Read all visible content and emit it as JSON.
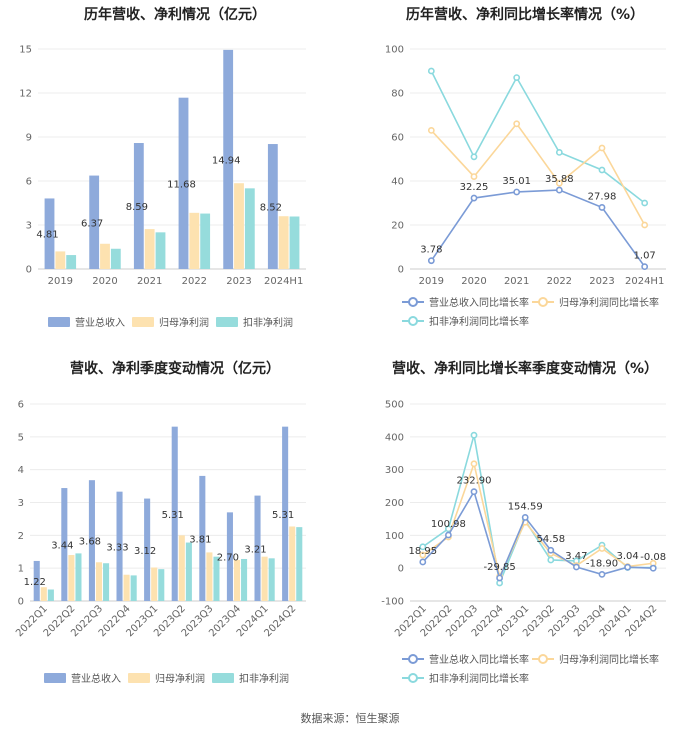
{
  "source": "数据来源：恒生聚源",
  "colors": {
    "revenue": "#8eaadb",
    "parent": "#fde2b0",
    "deducted": "#96dcdc",
    "line_revenue": "#7b9bd6",
    "line_parent": "#fbd79a",
    "line_deducted": "#8ad9de",
    "grid": "#ececec",
    "axis": "#cccccc"
  },
  "chart_data": [
    {
      "id": "annual-bar",
      "type": "bar",
      "title": "历年营收、净利情况（亿元）",
      "categories": [
        "2019",
        "2020",
        "2021",
        "2022",
        "2023",
        "2024H1"
      ],
      "series": [
        {
          "name": "营业总收入",
          "values": [
            4.81,
            6.37,
            8.59,
            11.68,
            14.94,
            8.52
          ]
        },
        {
          "name": "归母净利润",
          "values": [
            1.2,
            1.72,
            2.72,
            3.83,
            5.85,
            3.6
          ]
        },
        {
          "name": "扣非净利润",
          "values": [
            0.95,
            1.38,
            2.5,
            3.78,
            5.5,
            3.58
          ]
        }
      ],
      "labels": [
        "4.81",
        "6.37",
        "8.59",
        "11.68",
        "14.94",
        "8.52"
      ],
      "yticks": [
        "0",
        "3",
        "6",
        "9",
        "12",
        "15"
      ],
      "ylim": [
        0,
        15
      ]
    },
    {
      "id": "annual-line",
      "type": "line",
      "title": "历年营收、净利同比增长率情况（%）",
      "categories": [
        "2019",
        "2020",
        "2021",
        "2022",
        "2023",
        "2024H1"
      ],
      "series": [
        {
          "name": "营业总收入同比增长率",
          "values": [
            3.78,
            32.25,
            35.01,
            35.88,
            27.98,
            1.07
          ]
        },
        {
          "name": "归母净利润同比增长率",
          "values": [
            63,
            42,
            66,
            39,
            55,
            20
          ]
        },
        {
          "name": "扣非净利润同比增长率",
          "values": [
            90,
            51,
            87,
            53,
            45,
            30
          ]
        }
      ],
      "labels": [
        "3.78",
        "32.25",
        "35.01",
        "35.88",
        "27.98",
        "1.07"
      ],
      "yticks": [
        "0",
        "20",
        "40",
        "60",
        "80",
        "100"
      ],
      "ylim": [
        0,
        100
      ]
    },
    {
      "id": "quarter-bar",
      "type": "bar",
      "title": "营收、净利季度变动情况（亿元）",
      "categories": [
        "2022Q1",
        "2022Q2",
        "2022Q3",
        "2022Q4",
        "2023Q1",
        "2023Q2",
        "2023Q3",
        "2023Q4",
        "2024Q1",
        "2024Q2"
      ],
      "series": [
        {
          "name": "营业总收入",
          "values": [
            1.22,
            3.44,
            3.68,
            3.33,
            3.12,
            5.31,
            3.81,
            2.7,
            3.21,
            5.31
          ]
        },
        {
          "name": "归母净利润",
          "values": [
            0.42,
            1.4,
            1.18,
            0.8,
            1.02,
            2.0,
            1.48,
            1.25,
            1.35,
            2.27
          ]
        },
        {
          "name": "扣非净利润",
          "values": [
            0.35,
            1.45,
            1.15,
            0.78,
            0.97,
            1.78,
            1.35,
            1.28,
            1.3,
            2.25
          ]
        }
      ],
      "labels": [
        "1.22",
        "3.44",
        "3.68",
        "3.33",
        "3.12",
        "5.31",
        "3.81",
        "2.70",
        "3.21",
        "5.31"
      ],
      "yticks": [
        "0",
        "1",
        "2",
        "3",
        "4",
        "5",
        "6"
      ],
      "ylim": [
        0,
        6
      ]
    },
    {
      "id": "quarter-line",
      "type": "line",
      "title": "营收、净利同比增长率季度变动情况（%）",
      "categories": [
        "2022Q1",
        "2022Q2",
        "2022Q3",
        "2022Q4",
        "2023Q1",
        "2023Q2",
        "2023Q3",
        "2023Q4",
        "2024Q1",
        "2024Q2"
      ],
      "series": [
        {
          "name": "营业总收入同比增长率",
          "values": [
            18.95,
            100.98,
            232.9,
            -29.85,
            154.59,
            54.58,
            3.47,
            -18.9,
            3.04,
            -0.08
          ]
        },
        {
          "name": "归母净利润同比增长率",
          "values": [
            40,
            95,
            318,
            -25,
            140,
            45,
            8,
            60,
            5,
            15
          ]
        },
        {
          "name": "扣非净利润同比增长率",
          "values": [
            65,
            120,
            405,
            -45,
            145,
            25,
            22,
            70,
            2,
            2
          ]
        }
      ],
      "labels": [
        "18.95",
        "100.98",
        "232.90",
        "-29.85",
        "154.59",
        "54.58",
        "3.47",
        "-18.90",
        "3.04",
        "-0.08"
      ],
      "yticks": [
        "-100",
        "0",
        "100",
        "200",
        "300",
        "400",
        "500"
      ],
      "ylim": [
        -100,
        500
      ]
    }
  ]
}
